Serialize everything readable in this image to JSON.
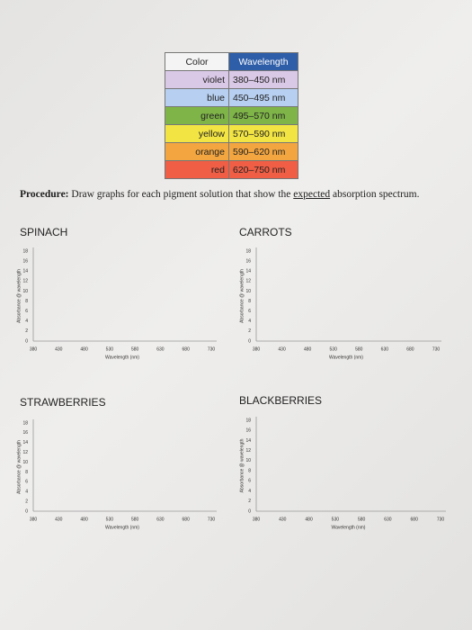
{
  "table": {
    "columns": [
      "Color",
      "Wavelength"
    ],
    "rows": [
      [
        "violet",
        "380–450 nm"
      ],
      [
        "blue",
        "450–495 nm"
      ],
      [
        "green",
        "495–570 nm"
      ],
      [
        "yellow",
        "570–590 nm"
      ],
      [
        "orange",
        "590–620 nm"
      ],
      [
        "red",
        "620–750 nm"
      ]
    ]
  },
  "procedure": {
    "label": "Procedure:",
    "before": "Draw graphs for each pigment solution that show the",
    "emphasis": "expected",
    "after": "absorption spectrum."
  },
  "graphs": [
    {
      "title": "SPINACH",
      "y_label": "Absorbance @ wavelength",
      "x_label": "Wavelength (nm)",
      "yticks": [
        0,
        2,
        4,
        6,
        8,
        10,
        12,
        14,
        16,
        18
      ],
      "xticks": [
        380,
        430,
        480,
        530,
        580,
        630,
        680,
        730
      ]
    },
    {
      "title": "CARROTS",
      "y_label": "Absorbance @ wavelength",
      "x_label": "Wavelength (nm)",
      "yticks": [
        0,
        2,
        4,
        6,
        8,
        10,
        12,
        14,
        16,
        18
      ],
      "xticks": [
        380,
        430,
        480,
        530,
        580,
        630,
        680,
        730
      ]
    },
    {
      "title": "STRAWBERRIES",
      "y_label": "Absorbance @ wavelength",
      "x_label": "Wavelength (nm)",
      "yticks": [
        0,
        2,
        4,
        6,
        8,
        10,
        12,
        14,
        16,
        18
      ],
      "xticks": [
        380,
        430,
        480,
        530,
        580,
        630,
        680,
        730
      ]
    },
    {
      "title": "BLACKBERRIES",
      "y_label": "Absorbance @ wavelength",
      "x_label": "Wavelength (nm)",
      "yticks": [
        0,
        2,
        4,
        6,
        8,
        10,
        12,
        14,
        16,
        18
      ],
      "xticks": [
        380,
        430,
        480,
        530,
        580,
        630,
        680,
        730
      ]
    }
  ]
}
